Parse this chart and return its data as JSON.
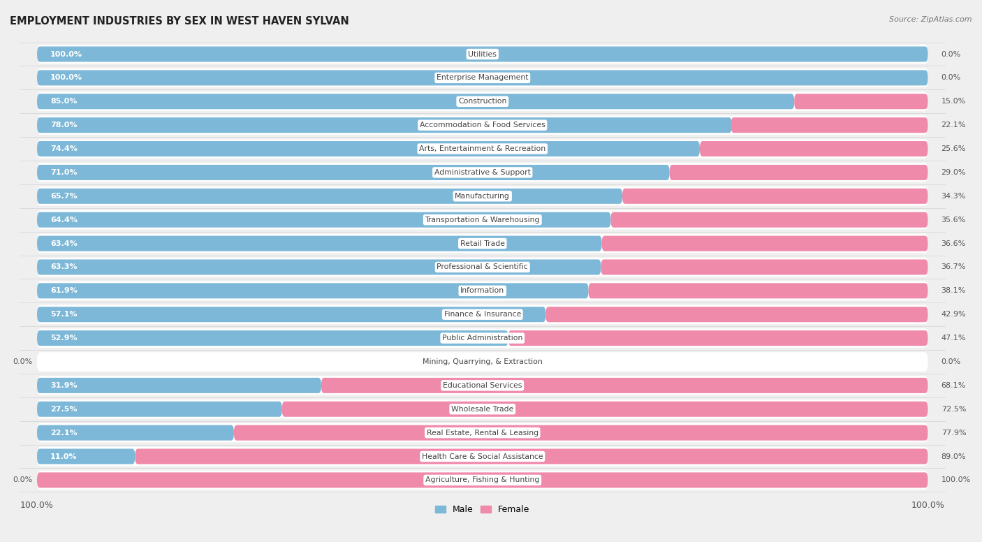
{
  "title": "EMPLOYMENT INDUSTRIES BY SEX IN WEST HAVEN SYLVAN",
  "source": "Source: ZipAtlas.com",
  "male_color": "#7db8d8",
  "female_color": "#f08aaa",
  "background_color": "#efefef",
  "row_bg_color": "#ffffff",
  "categories": [
    "Utilities",
    "Enterprise Management",
    "Construction",
    "Accommodation & Food Services",
    "Arts, Entertainment & Recreation",
    "Administrative & Support",
    "Manufacturing",
    "Transportation & Warehousing",
    "Retail Trade",
    "Professional & Scientific",
    "Information",
    "Finance & Insurance",
    "Public Administration",
    "Mining, Quarrying, & Extraction",
    "Educational Services",
    "Wholesale Trade",
    "Real Estate, Rental & Leasing",
    "Health Care & Social Assistance",
    "Agriculture, Fishing & Hunting"
  ],
  "male": [
    100.0,
    100.0,
    85.0,
    78.0,
    74.4,
    71.0,
    65.7,
    64.4,
    63.4,
    63.3,
    61.9,
    57.1,
    52.9,
    0.0,
    31.9,
    27.5,
    22.1,
    11.0,
    0.0
  ],
  "female": [
    0.0,
    0.0,
    15.0,
    22.1,
    25.6,
    29.0,
    34.3,
    35.6,
    36.6,
    36.7,
    38.1,
    42.9,
    47.1,
    0.0,
    68.1,
    72.5,
    77.9,
    89.0,
    100.0
  ],
  "legend_male": "Male",
  "legend_female": "Female",
  "male_label_color": "#ffffff",
  "pct_label_color": "#555555",
  "cat_label_color": "#444444",
  "title_color": "#222222",
  "source_color": "#777777"
}
